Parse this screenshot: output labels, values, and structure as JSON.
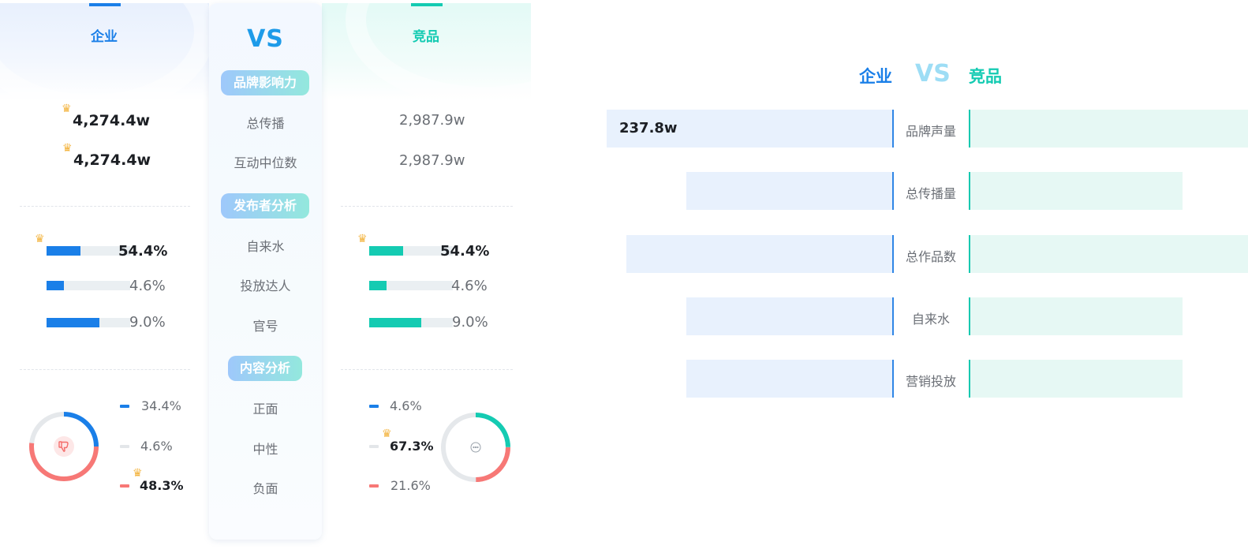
{
  "colors": {
    "enterprise": "#1a7fe8",
    "competitor": "#14cbb2",
    "negative": "#f77876",
    "neutral": "#e3e6e9",
    "vs": "#1e9be9",
    "vs_light": "#9dddf5"
  },
  "left_panel": {
    "tab_enterprise": "企业",
    "vs": "VS",
    "tab_competitor": "竞品",
    "sections": {
      "brand": "品牌影响力",
      "publisher": "发布者分析",
      "content": "内容分析"
    },
    "labels": {
      "total_spread": "总传播",
      "interaction_median": "互动中位数",
      "organic": "自来水",
      "kol": "投放达人",
      "official": "官号",
      "positive": "正面",
      "neutral": "中性",
      "negative": "负面"
    },
    "enterprise": {
      "total_spread": "4,274.4w",
      "interaction_median": "4,274.4w",
      "publisher": [
        {
          "pct": "54.4%",
          "value": 0.544
        },
        {
          "pct": "4.6%",
          "value": 0.046
        },
        {
          "pct": "9.0%",
          "value": 0.09
        }
      ],
      "sentiment": {
        "positive": "34.4%",
        "neutral": "4.6%",
        "negative": "48.3%",
        "icon": "thumbs-down-icon"
      }
    },
    "competitor": {
      "total_spread": "2,987.9w",
      "interaction_median": "2,987.9w",
      "publisher": [
        {
          "pct": "54.4%",
          "value": 0.544
        },
        {
          "pct": "4.6%",
          "value": 0.046
        },
        {
          "pct": "9.0%",
          "value": 0.09
        }
      ],
      "sentiment": {
        "positive": "4.6%",
        "neutral": "67.3%",
        "negative": "21.6%",
        "icon": "chat-bubble-icon"
      }
    }
  },
  "right_panel": {
    "enterprise_label": "企业",
    "vs": "VS",
    "competitor_label": "竞品"
  },
  "chart_data": {
    "type": "bar",
    "categories": [
      "品牌声量",
      "总传播量",
      "总作品数",
      "自来水",
      "营销投放"
    ],
    "series": [
      {
        "name": "企业",
        "values": [
          1.0,
          0.72,
          0.93,
          0.72,
          0.72
        ],
        "data_labels": [
          "237.8w",
          "",
          "",
          "",
          ""
        ]
      },
      {
        "name": "竞品",
        "values": [
          1.0,
          0.76,
          1.0,
          0.76,
          0.76
        ]
      }
    ]
  }
}
